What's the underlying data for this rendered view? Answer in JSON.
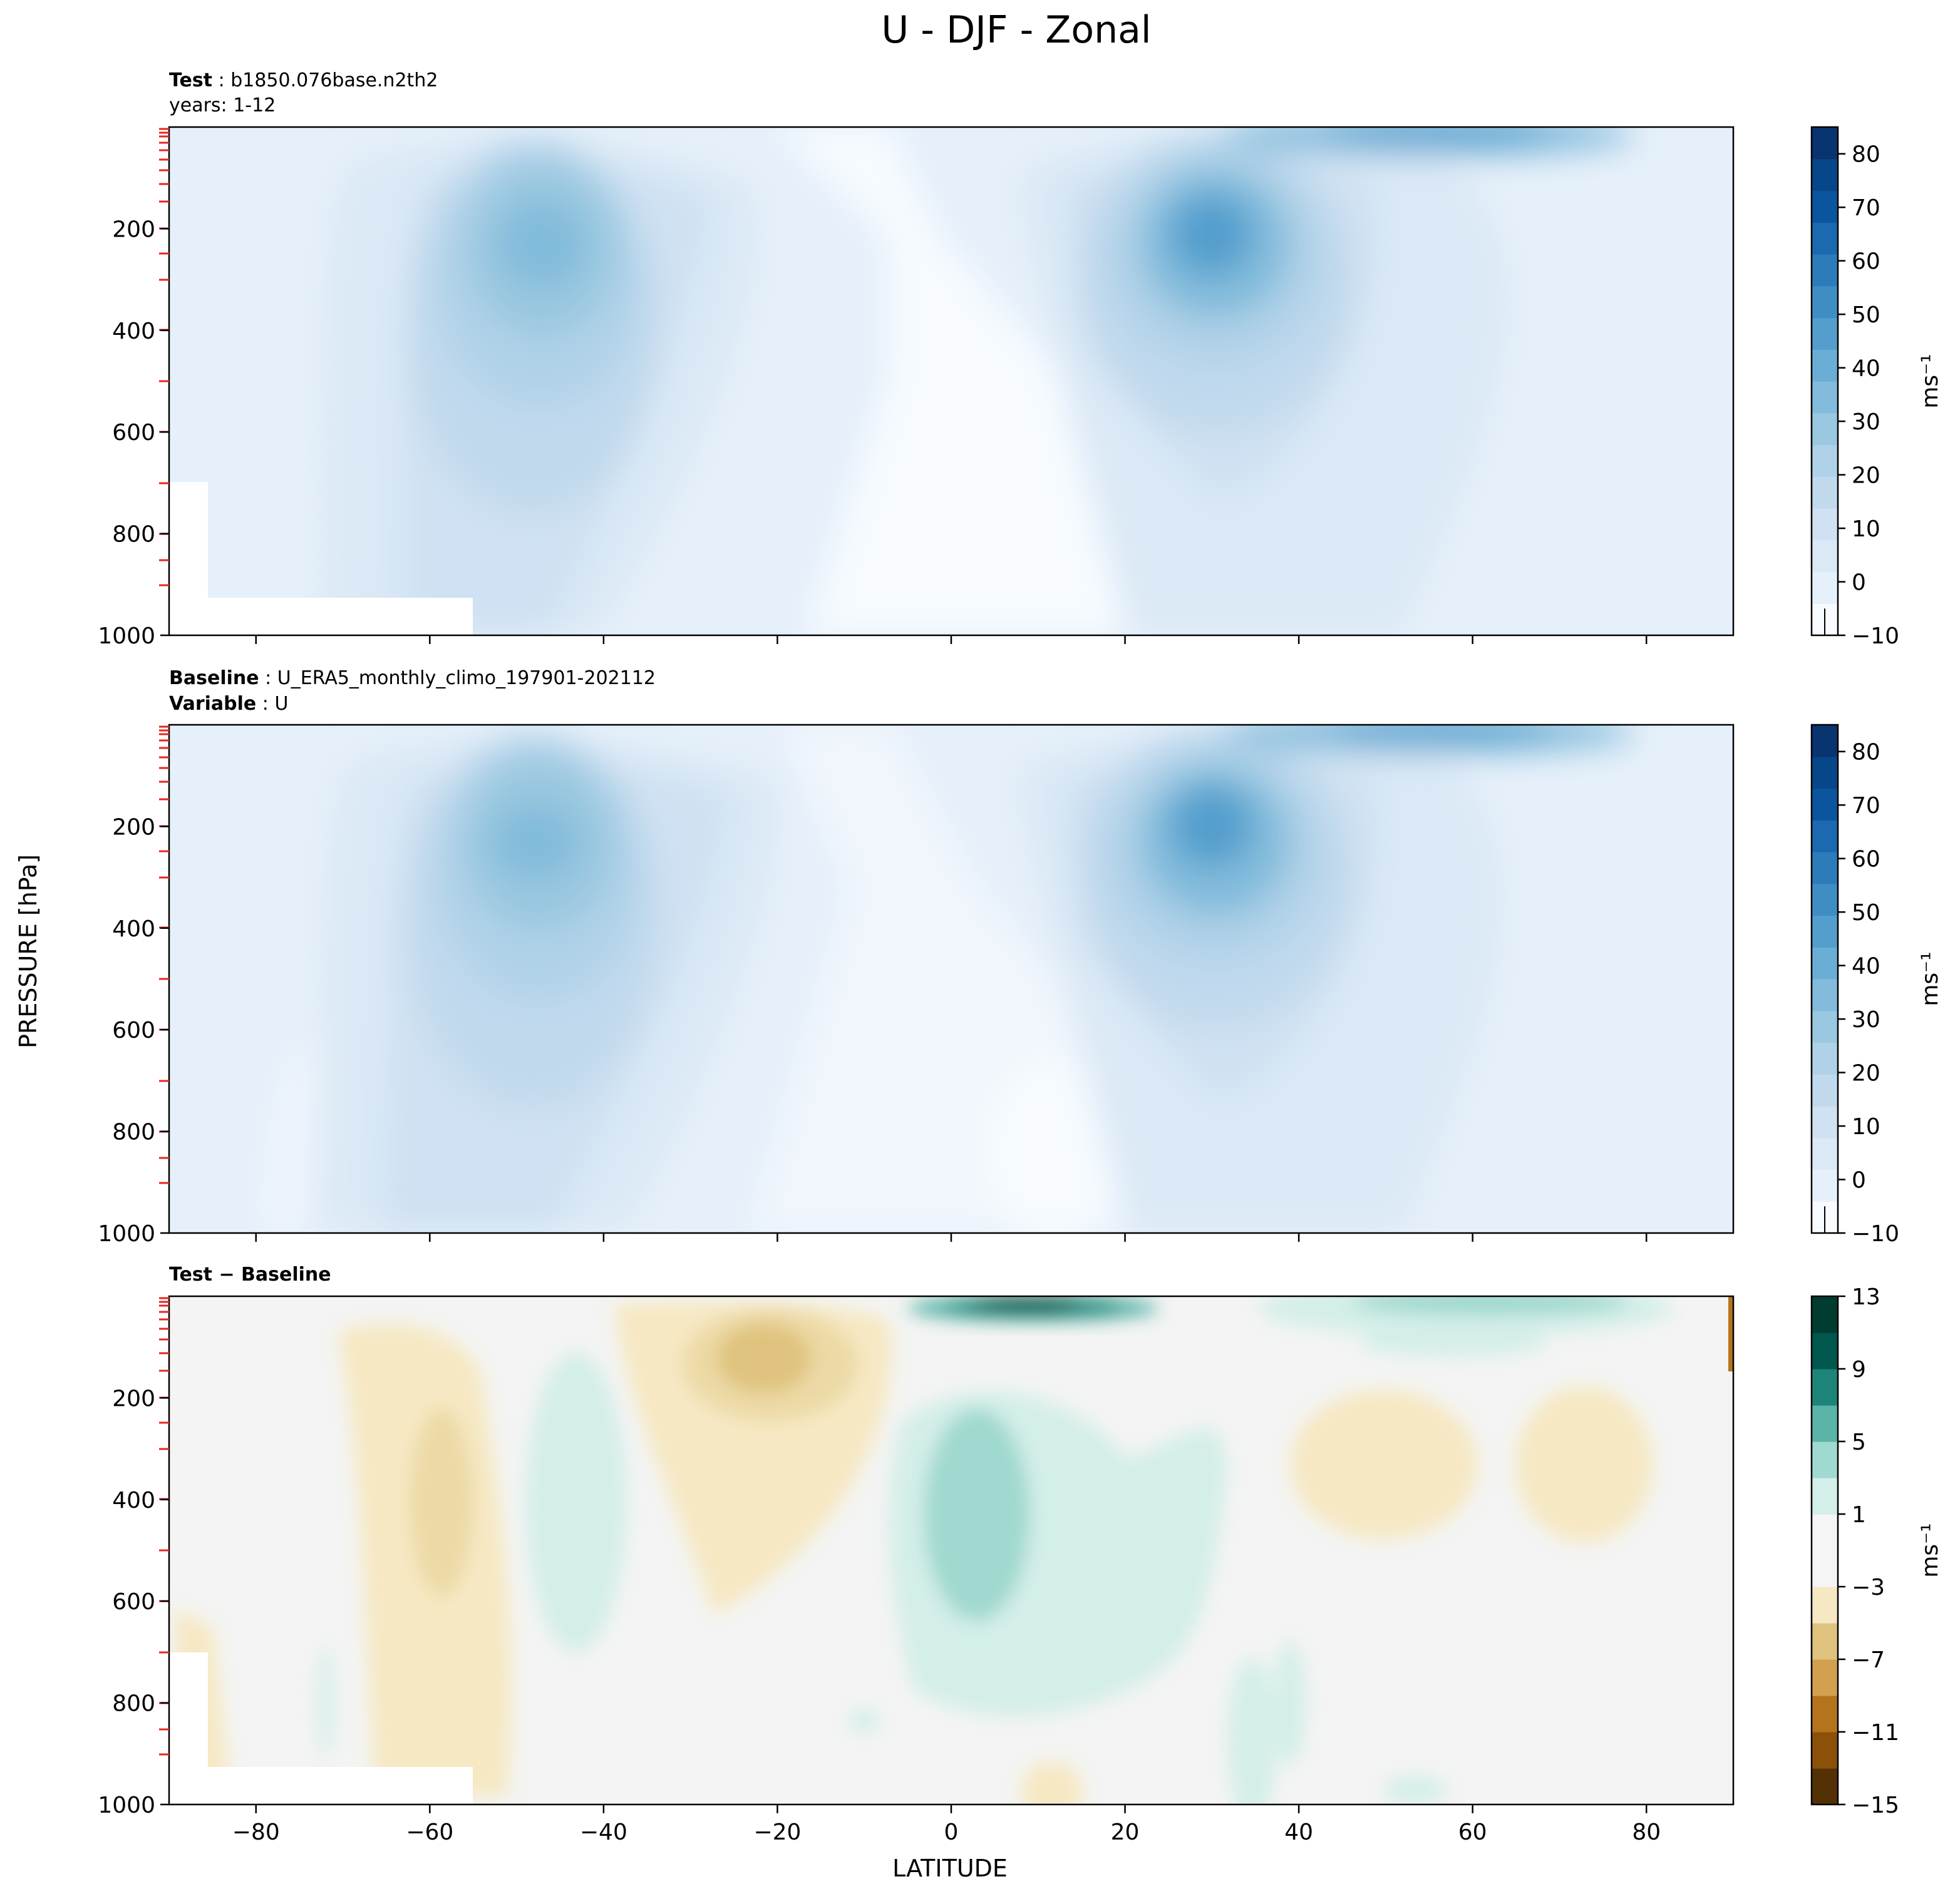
{
  "figure": {
    "title": "U - DJF - Zonal",
    "ylabel": "PRESSURE [hPa]",
    "xlabel": "LATITUDE"
  },
  "colors": {
    "blues": [
      "#f7fbff",
      "#e6f0fa",
      "#dbe9f6",
      "#cfe1f2",
      "#c1d9ed",
      "#b0d2e8",
      "#9ac8e0",
      "#82bbdb",
      "#6aaed6",
      "#539ecd",
      "#3e8ec4",
      "#2c7cba",
      "#1b69af",
      "#0b559f",
      "#08468a",
      "#083470"
    ],
    "diverging": [
      "#543005",
      "#8c5109",
      "#b4741d",
      "#d2a04f",
      "#dfc27d",
      "#f6e8c3",
      "#f5f5f5",
      "#d4eee9",
      "#a0d9cf",
      "#5ab4a8",
      "#1d8479",
      "#00574d",
      "#003c30"
    ]
  },
  "chart_data": [
    {
      "type": "contour",
      "panel": "test",
      "header": {
        "line1_bold": "Test",
        "line1_text": "b1850.076base.n2th2",
        "line2_text": "years: 1-12"
      },
      "xlabel": "",
      "ylabel": "",
      "xlim": [
        -90,
        90
      ],
      "ylim": [
        1000,
        0
      ],
      "x_ticks": [
        -80,
        -60,
        -40,
        -20,
        0,
        20,
        40,
        60,
        80
      ],
      "y_ticks": [
        200,
        400,
        600,
        800,
        1000
      ],
      "y_tick_labels": [
        "200",
        "400",
        "600",
        "800",
        "1000"
      ],
      "jets": [
        {
          "lat": -47,
          "p": 240,
          "max": 42
        },
        {
          "lat": 31,
          "p": 210,
          "max": 50
        }
      ],
      "colorbar": {
        "label": "ms⁻¹",
        "range": [
          -10,
          85
        ],
        "ticks": [
          "80",
          "70",
          "60",
          "50",
          "40",
          "30",
          "20",
          "10",
          "0",
          "−10"
        ],
        "tick_values": [
          80,
          70,
          60,
          50,
          40,
          30,
          20,
          10,
          0,
          -10
        ]
      }
    },
    {
      "type": "contour",
      "panel": "baseline",
      "header": {
        "line1_bold": "Baseline",
        "line1_text": "U_ERA5_monthly_climo_197901-202112",
        "line2_bold": "Variable",
        "line2_text": "U"
      },
      "xlabel": "",
      "ylabel": "PRESSURE [hPa]",
      "xlim": [
        -90,
        90
      ],
      "ylim": [
        1000,
        0
      ],
      "x_ticks": [
        -80,
        -60,
        -40,
        -20,
        0,
        20,
        40,
        60,
        80
      ],
      "y_ticks": [
        200,
        400,
        600,
        800,
        1000
      ],
      "y_tick_labels": [
        "200",
        "400",
        "600",
        "800",
        "1000"
      ],
      "jets": [
        {
          "lat": -47,
          "p": 230,
          "max": 42
        },
        {
          "lat": 31,
          "p": 200,
          "max": 48
        }
      ],
      "colorbar": {
        "label": "ms⁻¹",
        "range": [
          -10,
          85
        ],
        "ticks": [
          "80",
          "70",
          "60",
          "50",
          "40",
          "30",
          "20",
          "10",
          "0",
          "−10"
        ],
        "tick_values": [
          80,
          70,
          60,
          50,
          40,
          30,
          20,
          10,
          0,
          -10
        ]
      }
    },
    {
      "type": "contour",
      "panel": "difference",
      "header": {
        "line1_bold": "Test − Baseline"
      },
      "xlabel": "LATITUDE",
      "ylabel": "",
      "xlim": [
        -90,
        90
      ],
      "ylim": [
        1000,
        0
      ],
      "x_ticks": [
        -80,
        -60,
        -40,
        -20,
        0,
        20,
        40,
        60,
        80
      ],
      "x_tick_labels": [
        "−80",
        "−60",
        "−40",
        "−20",
        "0",
        "20",
        "40",
        "60",
        "80"
      ],
      "y_ticks": [
        200,
        400,
        600,
        800,
        1000
      ],
      "y_tick_labels": [
        "200",
        "400",
        "600",
        "800",
        "1000"
      ],
      "colorbar": {
        "label": "ms⁻¹",
        "range": [
          -15,
          13
        ],
        "ticks": [
          "13",
          "9",
          "5",
          "1",
          "−3",
          "−7",
          "−11",
          "−15"
        ],
        "tick_values": [
          13,
          9,
          5,
          1,
          -3,
          -7,
          -11,
          -15
        ]
      }
    }
  ]
}
